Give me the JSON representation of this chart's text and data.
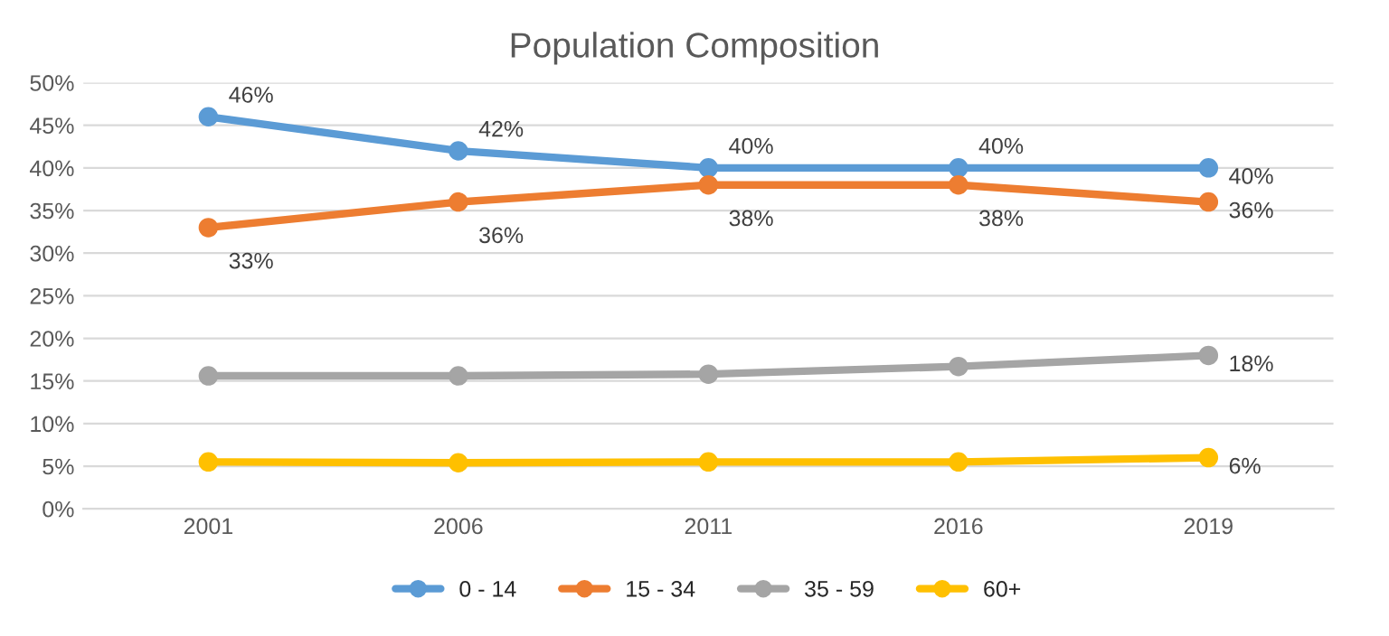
{
  "chart_data": {
    "type": "line",
    "title": "Population Composition",
    "categories": [
      "2001",
      "2006",
      "2011",
      "2016",
      "2019"
    ],
    "series": [
      {
        "name": "0 - 14",
        "color": "#5b9bd5",
        "values": [
          46,
          42,
          40,
          40,
          40
        ],
        "value_labels": [
          "46%",
          "42%",
          "40%",
          "40%",
          "40%"
        ]
      },
      {
        "name": "15 - 34",
        "color": "#ed7d31",
        "values": [
          33,
          36,
          38,
          38,
          36
        ],
        "value_labels": [
          "33%",
          "36%",
          "38%",
          "38%",
          "36%"
        ]
      },
      {
        "name": "35 - 59",
        "color": "#a5a5a5",
        "values": [
          15.6,
          15.6,
          15.8,
          16.7,
          18
        ],
        "value_labels": [
          null,
          null,
          null,
          null,
          "18%"
        ]
      },
      {
        "name": "60+",
        "color": "#ffc000",
        "values": [
          5.5,
          5.4,
          5.5,
          5.5,
          6
        ],
        "value_labels": [
          null,
          null,
          null,
          null,
          "6%"
        ]
      }
    ],
    "ylim": [
      0,
      50
    ],
    "yticks": [
      {
        "value": 0,
        "label": "0%"
      },
      {
        "value": 5,
        "label": "5%"
      },
      {
        "value": 10,
        "label": "10%"
      },
      {
        "value": 15,
        "label": "15%"
      },
      {
        "value": 20,
        "label": "20%"
      },
      {
        "value": 25,
        "label": "25%"
      },
      {
        "value": 30,
        "label": "30%"
      },
      {
        "value": 35,
        "label": "35%"
      },
      {
        "value": 40,
        "label": "40%"
      },
      {
        "value": 45,
        "label": "45%"
      },
      {
        "value": 50,
        "label": "50%"
      }
    ],
    "grid": "y",
    "legend": "bottom",
    "marker": "circle",
    "line_style": "solid"
  }
}
